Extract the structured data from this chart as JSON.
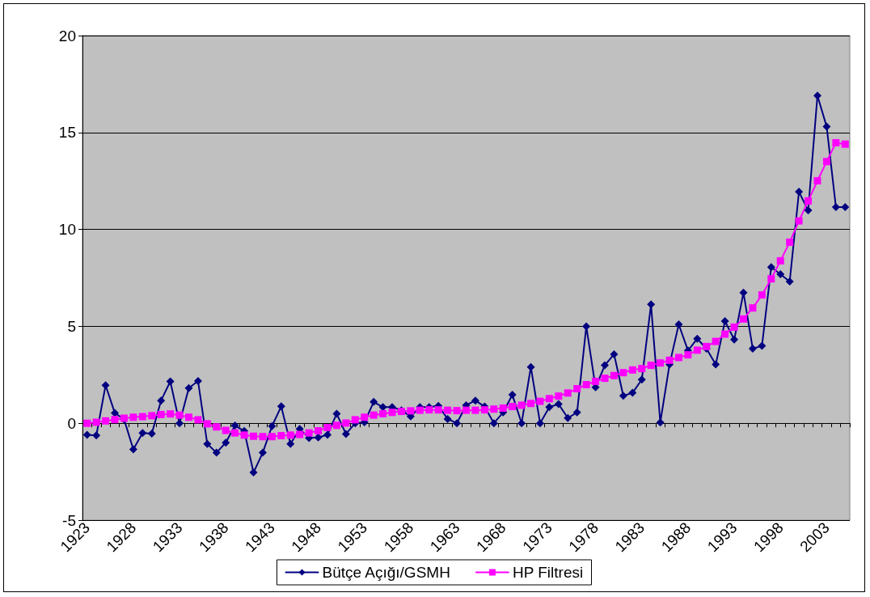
{
  "chart_data": {
    "type": "line",
    "categories": [
      "1923",
      null,
      null,
      null,
      null,
      "1928",
      null,
      null,
      null,
      null,
      "1933",
      null,
      null,
      null,
      null,
      "1938",
      null,
      null,
      null,
      null,
      "1943",
      null,
      null,
      null,
      null,
      "1948",
      null,
      null,
      null,
      null,
      "1953",
      null,
      null,
      null,
      null,
      "1958",
      null,
      null,
      null,
      null,
      "1963",
      null,
      null,
      null,
      null,
      "1968",
      null,
      null,
      null,
      null,
      "1973",
      null,
      null,
      null,
      null,
      "1978",
      null,
      null,
      null,
      null,
      "1983",
      null,
      null,
      null,
      null,
      "1988",
      null,
      null,
      null,
      null,
      "1993",
      null,
      null,
      null,
      null,
      "1998",
      null,
      null,
      null,
      null,
      "2003",
      null,
      null
    ],
    "series": [
      {
        "name": "Bütçe Açığı/GSMH",
        "color": "#000080",
        "marker": "diamond",
        "values": [
          -0.6,
          -0.63,
          1.96,
          0.53,
          0.2,
          -1.35,
          -0.5,
          -0.53,
          1.17,
          2.16,
          0,
          1.81,
          2.18,
          -1.07,
          -1.52,
          -1,
          -0.12,
          -0.4,
          -2.54,
          -1.52,
          -0.15,
          0.87,
          -1.07,
          -0.29,
          -0.76,
          -0.73,
          -0.6,
          0.49,
          -0.55,
          0,
          0.05,
          1.1,
          0.83,
          0.83,
          0.67,
          0.35,
          0.83,
          0.83,
          0.9,
          0.22,
          0,
          0.93,
          1.17,
          0.86,
          0,
          0.56,
          1.47,
          0,
          2.9,
          0,
          0.83,
          0.99,
          0.27,
          0.56,
          5.0,
          1.85,
          2.99,
          3.56,
          1.42,
          1.57,
          2.25,
          6.13,
          0.04,
          3.03,
          5.1,
          3.75,
          4.36,
          3.85,
          3.03,
          5.27,
          4.32,
          6.74,
          3.85,
          3.99,
          8.05,
          7.69,
          7.31,
          11.94,
          10.98,
          16.9,
          15.3,
          11.15,
          11.15
        ]
      },
      {
        "name": "HP Filtresi",
        "color": "#ff00ff",
        "marker": "square",
        "values": [
          0,
          0.05,
          0.12,
          0.19,
          0.26,
          0.31,
          0.34,
          0.39,
          0.45,
          0.48,
          0.42,
          0.31,
          0.18,
          -0.03,
          -0.19,
          -0.37,
          -0.5,
          -0.61,
          -0.67,
          -0.69,
          -0.69,
          -0.64,
          -0.61,
          -0.58,
          -0.5,
          -0.39,
          -0.22,
          -0.11,
          0.01,
          0.18,
          0.31,
          0.42,
          0.49,
          0.56,
          0.61,
          0.64,
          0.67,
          0.69,
          0.69,
          0.67,
          0.65,
          0.67,
          0.67,
          0.69,
          0.73,
          0.78,
          0.86,
          0.93,
          1.02,
          1.13,
          1.27,
          1.4,
          1.56,
          1.78,
          1.99,
          2.16,
          2.32,
          2.46,
          2.61,
          2.75,
          2.82,
          2.99,
          3.11,
          3.25,
          3.39,
          3.53,
          3.77,
          3.96,
          4.22,
          4.6,
          4.96,
          5.38,
          5.95,
          6.62,
          7.45,
          8.38,
          9.34,
          10.44,
          11.47,
          12.51,
          13.5,
          14.47,
          14.4
        ]
      }
    ],
    "ylim": [
      -5,
      20
    ],
    "yticks": [
      -5,
      0,
      5,
      10,
      15,
      20
    ],
    "grid": "y",
    "legend": "bottom",
    "line_style": "solid"
  }
}
